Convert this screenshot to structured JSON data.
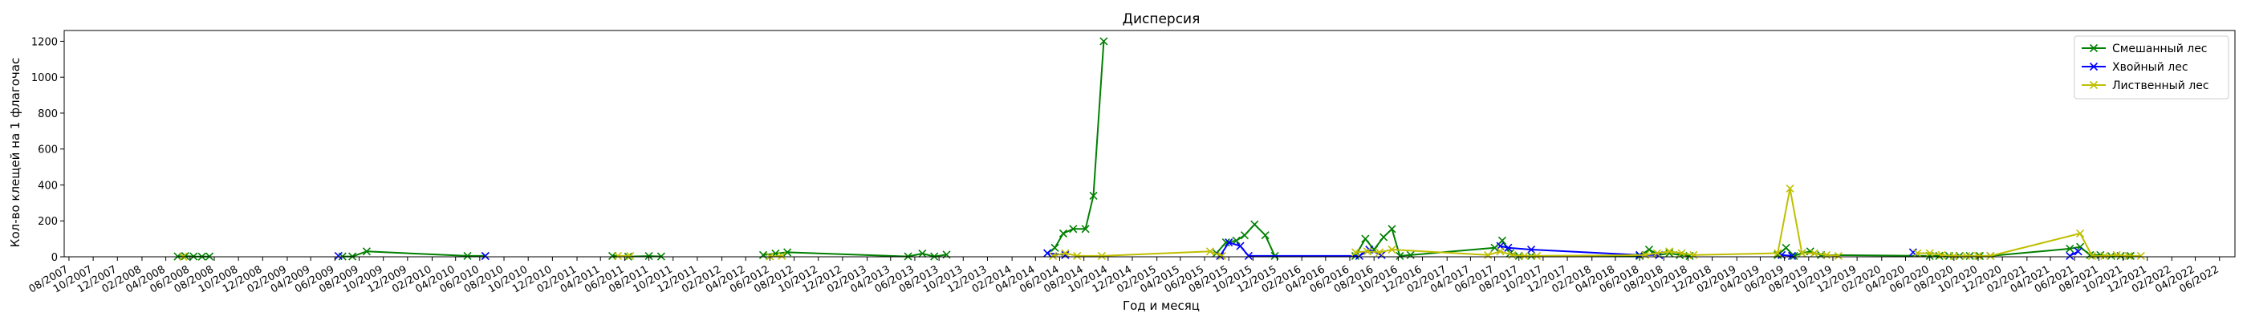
{
  "chart_data": {
    "type": "line",
    "title": "Дисперсия",
    "xlabel": "Год и месяц",
    "ylabel": "Кол-во клещей на 1 флагочас",
    "ylim": [
      0,
      1260
    ],
    "xlim": [
      "2007-07-20",
      "2022-07-10"
    ],
    "yticks": [
      0,
      200,
      400,
      600,
      800,
      1000,
      1200
    ],
    "xtick_start": "2007-08",
    "xtick_end": "2022-06",
    "xtick_step_months": 2,
    "xtick_format": "MM/YYYY",
    "grid": false,
    "legend_position": "upper right",
    "series": [
      {
        "name": "Смешанный лес",
        "color": "#008000",
        "segments": [
          [
            [
              "2008-05-01",
              2
            ],
            [
              "2008-05-20",
              4
            ],
            [
              "2008-06-10",
              2
            ],
            [
              "2008-07-01",
              1
            ],
            [
              "2008-07-20",
              2
            ]
          ],
          [
            [
              "2009-06-20",
              2
            ],
            [
              "2009-07-15",
              2
            ],
            [
              "2009-08-20",
              30
            ],
            [
              "2010-05-01",
              5
            ],
            [
              "2010-06-15",
              5
            ]
          ],
          [
            [
              "2011-05-01",
              5
            ],
            [
              "2011-06-10",
              1
            ],
            [
              "2011-08-01",
              4
            ],
            [
              "2011-09-01",
              2
            ]
          ],
          [
            [
              "2012-05-15",
              10
            ],
            [
              "2012-06-15",
              18
            ],
            [
              "2012-07-15",
              25
            ],
            [
              "2013-05-15",
              2
            ],
            [
              "2013-06-20",
              18
            ],
            [
              "2013-07-20",
              2
            ],
            [
              "2013-08-20",
              12
            ]
          ],
          [
            [
              "2014-05-01",
              20
            ],
            [
              "2014-05-20",
              50
            ],
            [
              "2014-06-10",
              130
            ],
            [
              "2014-07-05",
              155
            ],
            [
              "2014-08-05",
              155
            ],
            [
              "2014-08-25",
              340
            ],
            [
              "2014-09-20",
              1200
            ]
          ],
          [
            [
              "2015-07-01",
              20
            ],
            [
              "2015-07-25",
              80
            ],
            [
              "2015-08-20",
              90
            ],
            [
              "2015-09-10",
              120
            ],
            [
              "2015-10-05",
              180
            ],
            [
              "2015-11-01",
              120
            ],
            [
              "2015-11-25",
              5
            ]
          ],
          [
            [
              "2016-06-15",
              5
            ],
            [
              "2016-07-10",
              100
            ],
            [
              "2016-08-01",
              40
            ],
            [
              "2016-08-25",
              110
            ],
            [
              "2016-09-15",
              155
            ],
            [
              "2016-10-05",
              5
            ],
            [
              "2016-11-01",
              10
            ],
            [
              "2017-06-01",
              50
            ],
            [
              "2017-06-20",
              90
            ],
            [
              "2017-07-10",
              20
            ],
            [
              "2017-08-01",
              5
            ],
            [
              "2017-09-01",
              5
            ],
            [
              "2018-06-01",
              5
            ],
            [
              "2018-06-25",
              40
            ],
            [
              "2018-07-20",
              10
            ],
            [
              "2018-08-15",
              20
            ],
            [
              "2018-09-10",
              10
            ],
            [
              "2018-10-05",
              5
            ]
          ],
          [
            [
              "2019-05-15",
              10
            ],
            [
              "2019-06-05",
              50
            ],
            [
              "2019-06-25",
              5
            ],
            [
              "2019-07-15",
              20
            ],
            [
              "2019-08-05",
              30
            ],
            [
              "2019-09-01",
              10
            ],
            [
              "2020-06-01",
              5
            ],
            [
              "2020-06-25",
              5
            ],
            [
              "2020-07-20",
              5
            ],
            [
              "2020-08-15",
              5
            ],
            [
              "2020-09-10",
              5
            ],
            [
              "2020-10-05",
              5
            ],
            [
              "2020-11-01",
              5
            ],
            [
              "2021-05-20",
              45
            ],
            [
              "2021-06-15",
              55
            ],
            [
              "2021-07-10",
              10
            ],
            [
              "2021-08-05",
              10
            ],
            [
              "2021-09-01",
              5
            ],
            [
              "2021-09-25",
              5
            ],
            [
              "2021-10-20",
              5
            ]
          ]
        ]
      },
      {
        "name": "Хвойный лес",
        "color": "#0000ff",
        "segments": [
          [
            [
              "2009-06-10",
              5
            ]
          ],
          [
            [
              "2010-06-15",
              4
            ]
          ],
          [
            [
              "2014-05-01",
              20
            ],
            [
              "2014-06-15",
              10
            ]
          ],
          [
            [
              "2015-07-10",
              5
            ],
            [
              "2015-08-01",
              80
            ],
            [
              "2015-08-30",
              60
            ],
            [
              "2015-09-20",
              5
            ],
            [
              "2016-06-25",
              5
            ],
            [
              "2016-07-20",
              40
            ],
            [
              "2016-08-20",
              10
            ]
          ],
          [
            [
              "2017-06-15",
              60
            ],
            [
              "2017-07-05",
              50
            ],
            [
              "2017-09-01",
              40
            ],
            [
              "2018-06-01",
              10
            ],
            [
              "2018-07-20",
              10
            ]
          ],
          [
            [
              "2019-05-25",
              10
            ],
            [
              "2019-06-20",
              5
            ]
          ],
          [
            [
              "2020-04-20",
              25
            ]
          ],
          [
            [
              "2021-05-20",
              5
            ],
            [
              "2021-06-10",
              30
            ]
          ]
        ]
      },
      {
        "name": "Лиственный лес",
        "color": "#bfbf00",
        "segments": [
          [
            [
              "2008-05-15",
              1
            ]
          ],
          [
            [
              "2011-05-15",
              5
            ],
            [
              "2011-06-15",
              5
            ]
          ],
          [
            [
              "2012-06-01",
              2
            ],
            [
              "2012-07-01",
              5
            ]
          ],
          [
            [
              "2014-05-15",
              5
            ],
            [
              "2014-06-15",
              20
            ],
            [
              "2014-07-15",
              5
            ],
            [
              "2014-09-15",
              5
            ],
            [
              "2015-06-15",
              30
            ],
            [
              "2015-07-15",
              5
            ]
          ],
          [
            [
              "2016-06-15",
              25
            ],
            [
              "2016-07-15",
              30
            ],
            [
              "2016-08-15",
              25
            ],
            [
              "2016-09-15",
              40
            ],
            [
              "2017-05-15",
              10
            ],
            [
              "2017-06-15",
              30
            ],
            [
              "2017-07-15",
              10
            ],
            [
              "2017-08-15",
              5
            ],
            [
              "2017-09-15",
              5
            ],
            [
              "2018-06-15",
              10
            ],
            [
              "2018-07-15",
              20
            ],
            [
              "2018-08-15",
              30
            ],
            [
              "2018-09-15",
              20
            ],
            [
              "2018-10-15",
              10
            ],
            [
              "2019-05-15",
              20
            ],
            [
              "2019-06-15",
              380
            ],
            [
              "2019-07-15",
              20
            ],
            [
              "2019-08-15",
              20
            ],
            [
              "2019-09-15",
              10
            ],
            [
              "2019-10-15",
              5
            ]
          ],
          [
            [
              "2020-05-01",
              20
            ],
            [
              "2020-06-01",
              20
            ],
            [
              "2020-07-01",
              10
            ],
            [
              "2020-08-01",
              5
            ],
            [
              "2020-09-01",
              5
            ],
            [
              "2020-10-01",
              5
            ],
            [
              "2020-11-01",
              5
            ],
            [
              "2021-06-15",
              130
            ],
            [
              "2021-07-15",
              5
            ],
            [
              "2021-08-15",
              5
            ],
            [
              "2021-09-15",
              10
            ],
            [
              "2021-10-15",
              5
            ],
            [
              "2021-11-15",
              5
            ]
          ]
        ]
      }
    ]
  }
}
